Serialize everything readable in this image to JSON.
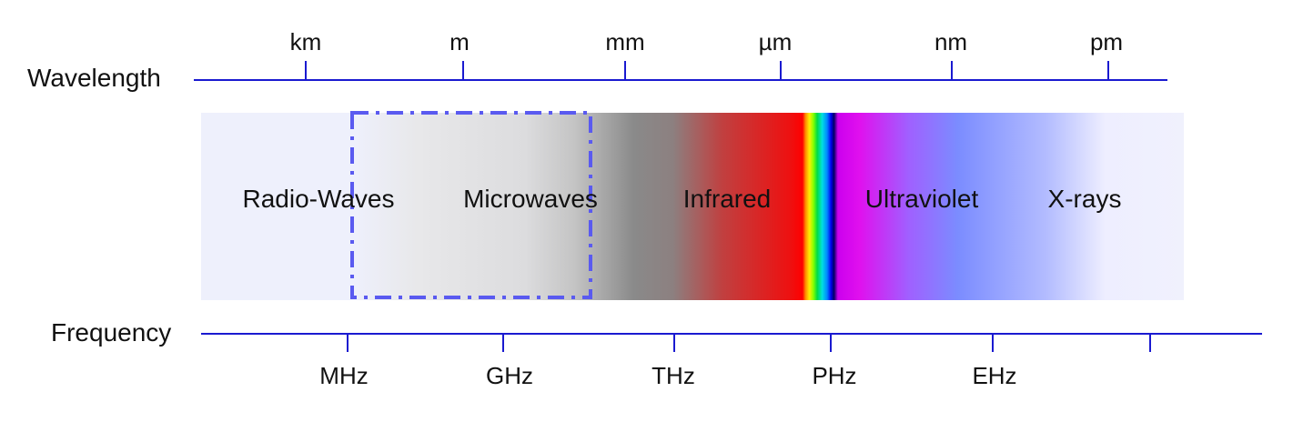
{
  "wavelength_axis": {
    "title": "Wavelength",
    "ticks": [
      "km",
      "m",
      "mm",
      "µm",
      "nm",
      "pm"
    ]
  },
  "frequency_axis": {
    "title": "Frequency",
    "ticks": [
      "MHz",
      "GHz",
      "THz",
      "PHz",
      "EHz",
      ""
    ]
  },
  "spectrum": {
    "regions": [
      "Radio-Waves",
      "Microwaves",
      "Infrared",
      "Ultraviolet",
      "X-rays"
    ]
  },
  "colors": {
    "axis": "#1a1ad0",
    "highlight_box": "#5a5af0",
    "background_band": "#eef0fc"
  }
}
